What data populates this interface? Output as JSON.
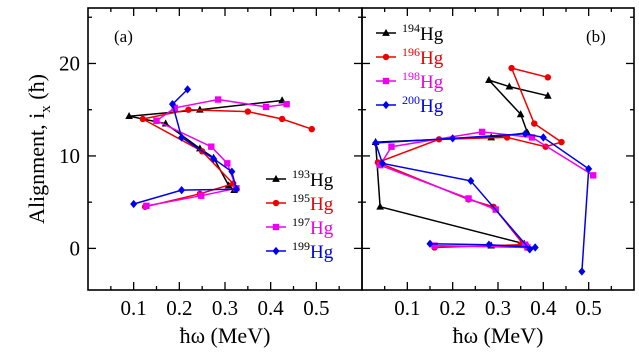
{
  "chart_data": [
    {
      "type": "line",
      "panel_label": "(a)",
      "xlabel": "ħω (MeV)",
      "ylabel": "Alignment, i",
      "ylabel_subscript": "x",
      "ylabel_unit": "(ħ)",
      "xlim": [
        0.0,
        0.6
      ],
      "ylim": [
        -4.5,
        26.0
      ],
      "xticks": [
        "0.1",
        "0.2",
        "0.3",
        "0.4",
        "0.5"
      ],
      "xtick_values": [
        0.1,
        0.2,
        0.3,
        0.4,
        0.5
      ],
      "yticks": [
        "0",
        "10",
        "20"
      ],
      "ytick_values": [
        0,
        10,
        20
      ],
      "grid": false,
      "legend_position": "lower-right",
      "series": [
        {
          "name": "193Hg",
          "mass": "193",
          "element": "Hg",
          "color": "#000000",
          "marker": "triangle",
          "x": [
            0.32,
            0.308,
            0.275,
            0.245,
            0.17,
            0.09,
            0.245,
            0.425
          ],
          "y": [
            6.3,
            6.8,
            9.8,
            10.8,
            13.5,
            14.3,
            15.0,
            16.0
          ]
        },
        {
          "name": "195Hg",
          "mass": "195",
          "element": "Hg",
          "color": "#ee0000",
          "marker": "circle",
          "x": [
            0.125,
            0.245,
            0.318,
            0.25,
            0.12,
            0.22,
            0.35,
            0.425,
            0.49
          ],
          "y": [
            4.5,
            5.9,
            7.0,
            10.5,
            14.0,
            15.0,
            14.8,
            14.0,
            12.9
          ]
        },
        {
          "name": "197Hg",
          "mass": "197",
          "element": "Hg",
          "color": "#ee00ee",
          "marker": "square",
          "x": [
            0.128,
            0.248,
            0.325,
            0.305,
            0.27,
            0.15,
            0.19,
            0.285,
            0.39,
            0.435
          ],
          "y": [
            4.6,
            5.7,
            6.5,
            9.2,
            11.0,
            13.8,
            15.2,
            16.1,
            15.3,
            15.6
          ]
        },
        {
          "name": "199Hg",
          "mass": "199",
          "element": "Hg",
          "color": "#0000ee",
          "marker": "diamond",
          "x": [
            0.1,
            0.205,
            0.325,
            0.315,
            0.275,
            0.205,
            0.185,
            0.218
          ],
          "y": [
            4.8,
            6.3,
            6.4,
            8.3,
            9.7,
            12.0,
            15.6,
            17.2
          ]
        }
      ]
    },
    {
      "type": "line",
      "panel_label": "(b)",
      "xlabel": "ħω (MeV)",
      "xlim": [
        0.0,
        0.6
      ],
      "ylim": [
        -4.5,
        26.0
      ],
      "xticks": [
        "0.1",
        "0.2",
        "0.3",
        "0.4",
        "0.5"
      ],
      "xtick_values": [
        0.1,
        0.2,
        0.3,
        0.4,
        0.5
      ],
      "yticks": [],
      "grid": false,
      "legend_position": "top-left",
      "series": [
        {
          "name": "194Hg",
          "mass": "194",
          "element": "Hg",
          "color": "#000000",
          "marker": "triangle",
          "x": [
            0.285,
            0.365,
            0.358,
            0.04,
            0.03,
            0.285,
            0.365,
            0.35,
            0.28,
            0.325,
            0.41
          ],
          "y": [
            0.3,
            0.3,
            0.5,
            4.5,
            11.5,
            12.0,
            12.5,
            14.5,
            18.2,
            17.5,
            16.5
          ]
        },
        {
          "name": "196Hg",
          "mass": "196",
          "element": "Hg",
          "color": "#ee0000",
          "marker": "circle",
          "x": [
            0.16,
            0.35,
            0.355,
            0.29,
            0.235,
            0.035,
            0.17,
            0.32,
            0.405,
            0.44,
            0.38,
            0.33,
            0.41
          ],
          "y": [
            0.1,
            0.4,
            0.5,
            4.5,
            5.3,
            9.3,
            11.8,
            12.0,
            11.0,
            11.5,
            13.5,
            19.5,
            18.5
          ]
        },
        {
          "name": "198Hg",
          "mass": "198",
          "element": "Hg",
          "color": "#ee00ee",
          "marker": "square",
          "x": [
            0.16,
            0.365,
            0.36,
            0.295,
            0.235,
            0.04,
            0.065,
            0.265,
            0.375,
            0.51
          ],
          "y": [
            0.3,
            0.1,
            0.4,
            4.2,
            5.4,
            9.0,
            11.0,
            12.6,
            12.0,
            7.9
          ]
        },
        {
          "name": "200Hg",
          "mass": "200",
          "element": "Hg",
          "color": "#0000ee",
          "marker": "diamond",
          "x": [
            0.15,
            0.28,
            0.382,
            0.37,
            0.24,
            0.045,
            0.03,
            0.2,
            0.36,
            0.4,
            0.5,
            0.485
          ],
          "y": [
            0.5,
            0.4,
            0.1,
            -0.1,
            7.3,
            9.2,
            11.4,
            11.9,
            12.4,
            12.0,
            8.6,
            -2.5
          ]
        }
      ]
    }
  ]
}
